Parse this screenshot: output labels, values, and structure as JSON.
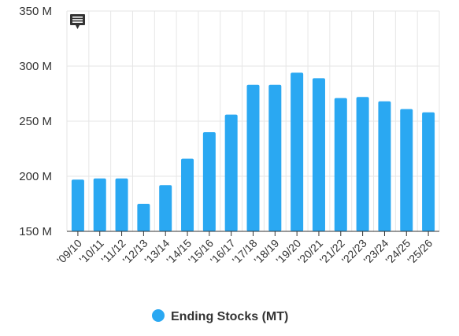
{
  "chart_data": {
    "type": "bar",
    "categories": [
      "'09/10",
      "'10/11",
      "'11/12",
      "'12/13",
      "'13/14",
      "'14/15",
      "'15/16",
      "'16/17",
      "'17/18",
      "'18/19",
      "'19/20",
      "'20/21",
      "'21/22",
      "'22/23",
      "'23/24",
      "'24/25",
      "'25/26"
    ],
    "series": [
      {
        "name": "Ending Stocks (MT)",
        "color": "#2aa8f2",
        "values": [
          197,
          198,
          198,
          175,
          192,
          216,
          240,
          256,
          283,
          283,
          294,
          289,
          271,
          272,
          268,
          261,
          258
        ]
      }
    ],
    "ylim": [
      150,
      350
    ],
    "yticks": [
      150,
      200,
      250,
      300,
      350
    ],
    "ytick_labels": [
      "150 M",
      "200 M",
      "250 M",
      "300 M",
      "350 M"
    ],
    "grid": true,
    "legend_position": "bottom-center",
    "title": "",
    "xlabel": "",
    "ylabel": ""
  },
  "toolbar": {
    "context_menu_icon": "chat-bubble-icon"
  }
}
